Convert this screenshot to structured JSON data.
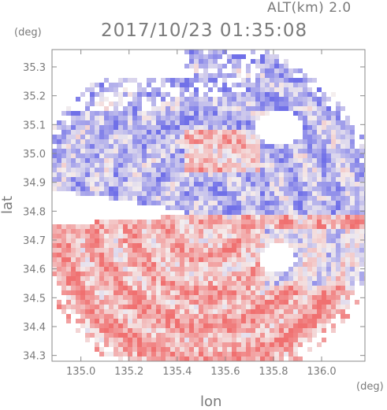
{
  "header": {
    "altitude_label": "ALT(km) 2.0",
    "timestamp": "2017/10/23 01:35:08"
  },
  "chart_data": {
    "type": "heatmap",
    "title": "2017/10/23 01:35:08",
    "xlabel": "lon",
    "ylabel": "lat",
    "xunit": "(deg)",
    "yunit": "(deg)",
    "xlim": [
      134.88,
      136.18
    ],
    "ylim": [
      34.28,
      35.36
    ],
    "xticks": [
      135.0,
      135.2,
      135.4,
      135.6,
      135.8,
      136.0
    ],
    "xtick_labels": [
      "135.0",
      "135.2",
      "135.4",
      "135.6",
      "135.8",
      "136.0"
    ],
    "yticks": [
      34.3,
      34.4,
      34.5,
      34.6,
      34.7,
      34.8,
      34.9,
      35.0,
      35.1,
      35.2,
      35.3
    ],
    "ytick_labels": [
      "34.3",
      "34.4",
      "34.5",
      "34.6",
      "34.7",
      "34.8",
      "34.9",
      "35.0",
      "35.1",
      "35.2",
      "35.3"
    ],
    "grid": false,
    "radar_center": [
      135.52,
      34.79
    ],
    "colors": {
      "positive": "#f07070",
      "negative": "#7070e8",
      "neutral": "#f4eeee",
      "axis": "#8a8a8a"
    }
  }
}
